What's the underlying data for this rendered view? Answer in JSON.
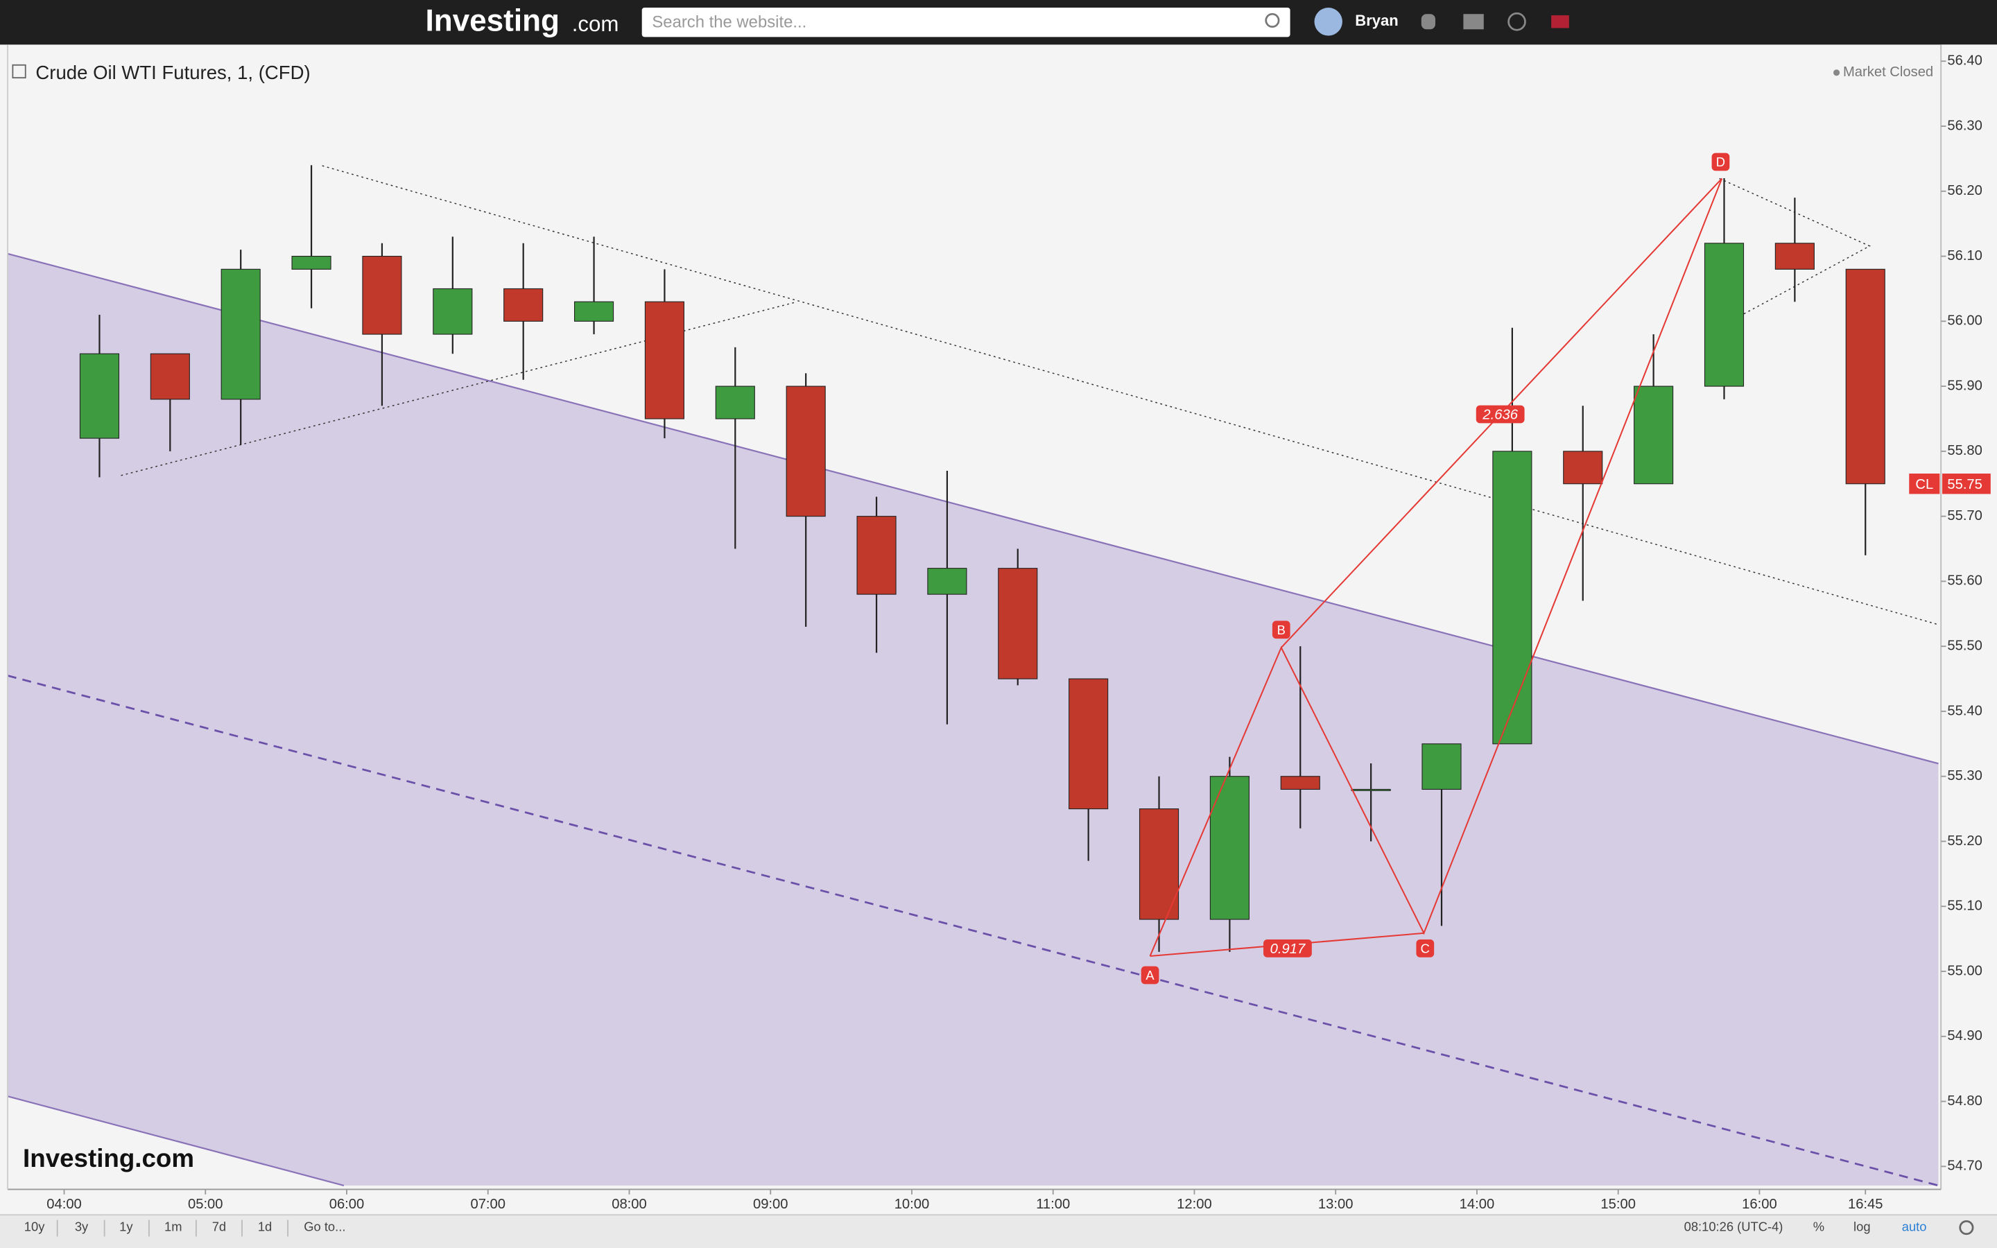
{
  "header": {
    "logo": "Investing",
    "logo_suffix": ".com",
    "search_placeholder": "Search the website...",
    "user": "Bryan"
  },
  "chart_data": {
    "type": "candlestick",
    "title": "Crude Oil WTI Futures, 1, (CFD)",
    "status": "Market Closed",
    "x": [
      "04:00",
      "04:30",
      "05:00",
      "05:30",
      "06:00",
      "06:30",
      "07:00",
      "07:30",
      "08:00",
      "08:30",
      "09:00",
      "09:30",
      "10:00",
      "10:30",
      "11:00",
      "11:30",
      "12:00",
      "12:30",
      "13:00",
      "13:30",
      "14:00",
      "14:30",
      "15:00",
      "15:30",
      "16:00",
      "16:30"
    ],
    "open": [
      55.82,
      55.95,
      55.88,
      56.08,
      56.1,
      55.98,
      56.05,
      56.0,
      56.03,
      55.85,
      55.9,
      55.7,
      55.58,
      55.62,
      55.45,
      55.25,
      55.08,
      55.3,
      55.28,
      55.28,
      55.35,
      55.8,
      55.75,
      55.9,
      56.12,
      56.08
    ],
    "high": [
      56.01,
      55.95,
      56.11,
      56.24,
      56.12,
      56.13,
      56.12,
      56.13,
      56.08,
      55.96,
      55.92,
      55.73,
      55.77,
      55.65,
      55.45,
      55.3,
      55.33,
      55.5,
      55.32,
      55.35,
      55.99,
      55.87,
      55.98,
      56.22,
      56.19,
      56.08
    ],
    "low": [
      55.76,
      55.8,
      55.81,
      56.02,
      55.87,
      55.95,
      55.91,
      55.98,
      55.82,
      55.65,
      55.53,
      55.49,
      55.38,
      55.44,
      55.17,
      55.03,
      55.03,
      55.22,
      55.2,
      55.07,
      55.35,
      55.57,
      55.75,
      55.88,
      56.03,
      55.64
    ],
    "close": [
      55.95,
      55.88,
      56.08,
      56.1,
      55.98,
      56.05,
      56.0,
      56.03,
      55.85,
      55.9,
      55.7,
      55.58,
      55.62,
      55.45,
      55.25,
      55.08,
      55.3,
      55.28,
      55.28,
      55.35,
      55.8,
      55.75,
      55.9,
      56.12,
      56.08,
      55.75
    ],
    "xlim": [
      "03:36",
      "17:16"
    ],
    "xticks": [
      "04:00",
      "05:00",
      "06:00",
      "07:00",
      "08:00",
      "09:00",
      "10:00",
      "11:00",
      "12:00",
      "13:00",
      "14:00",
      "15:00",
      "16:00",
      "16:45"
    ],
    "ylim": [
      54.67,
      56.42
    ],
    "yticks": [
      {
        "value": 54.7,
        "label": "54.70"
      },
      {
        "value": 54.8,
        "label": "54.80"
      },
      {
        "value": 54.9,
        "label": "54.90"
      },
      {
        "value": 55.0,
        "label": "55.00"
      },
      {
        "value": 55.1,
        "label": "55.10"
      },
      {
        "value": 55.2,
        "label": "55.20"
      },
      {
        "value": 55.3,
        "label": "55.30"
      },
      {
        "value": 55.4,
        "label": "55.40"
      },
      {
        "value": 55.5,
        "label": "55.50"
      },
      {
        "value": 55.6,
        "label": "55.60"
      },
      {
        "value": 55.7,
        "label": "55.70"
      },
      {
        "value": 55.8,
        "label": "55.80"
      },
      {
        "value": 55.9,
        "label": "55.90"
      },
      {
        "value": 56.0,
        "label": "56.00"
      },
      {
        "value": 56.1,
        "label": "56.10"
      },
      {
        "value": 56.2,
        "label": "56.20"
      },
      {
        "value": 56.3,
        "label": "56.30"
      },
      {
        "value": 56.4,
        "label": "56.40"
      }
    ],
    "up_color": "#3f9b3f",
    "down_color": "#c0392b",
    "pattern_points": [
      "A",
      "B",
      "C",
      "D"
    ],
    "pattern_ratios": [
      0.917,
      2.636
    ],
    "last_price": {
      "symbol": "CL",
      "value": 55.75
    },
    "watermark": "Investing.com"
  },
  "toolbar": {
    "ranges": [
      "10y",
      "3y",
      "1y",
      "1m",
      "7d",
      "1d",
      "Go to..."
    ],
    "clock": "08:10:26 (UTC-4)",
    "options": [
      "%",
      "log",
      "auto"
    ]
  }
}
